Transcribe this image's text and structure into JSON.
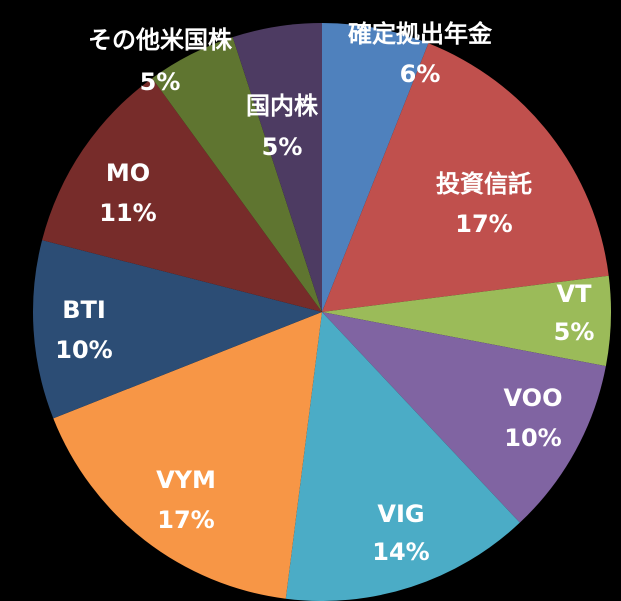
{
  "chart_data": {
    "type": "pie",
    "start_angle_deg": 0,
    "direction": "clockwise",
    "legend": "none",
    "slices": [
      {
        "name": "確定拠出年金",
        "pct_label": "6%",
        "value": 6,
        "color": "#4f81bd",
        "label_color": "#ffffff"
      },
      {
        "name": "投資信託",
        "pct_label": "17%",
        "value": 17,
        "color": "#c0504d",
        "label_color": "#ffffff"
      },
      {
        "name": "VT",
        "pct_label": "5%",
        "value": 5,
        "color": "#9bbb59",
        "label_color": "#ffffff"
      },
      {
        "name": "VOO",
        "pct_label": "10%",
        "value": 10,
        "color": "#8064a2",
        "label_color": "#ffffff"
      },
      {
        "name": "VIG",
        "pct_label": "14%",
        "value": 14,
        "color": "#4bacc6",
        "label_color": "#ffffff"
      },
      {
        "name": "VYM",
        "pct_label": "17%",
        "value": 17,
        "color": "#f79646",
        "label_color": "#ffffff"
      },
      {
        "name": "BTI",
        "pct_label": "10%",
        "value": 10,
        "color": "#2c4d75",
        "label_color": "#ffffff"
      },
      {
        "name": "MO",
        "pct_label": "11%",
        "value": 11,
        "color": "#772c2a",
        "label_color": "#ffffff"
      },
      {
        "name": "その他米国株",
        "pct_label": "5%",
        "value": 5,
        "color": "#5f7530",
        "label_color": "#ffffff"
      },
      {
        "name": "国内株",
        "pct_label": "5%",
        "value": 5,
        "color": "#4d3b62",
        "label_color": "#ffffff"
      }
    ]
  }
}
